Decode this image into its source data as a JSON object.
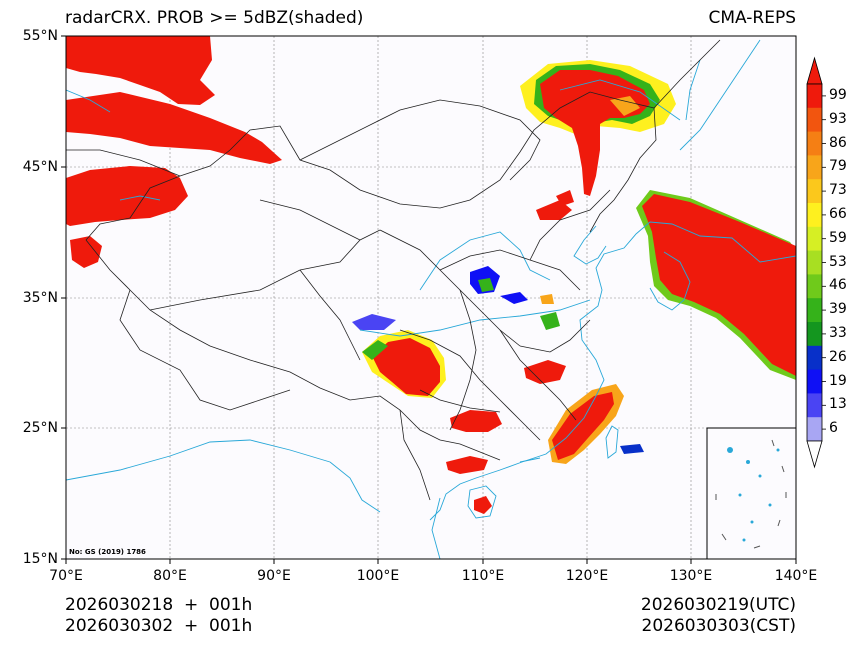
{
  "title_left": "radarCRX. PROB >= 5dBZ(shaded)",
  "title_right": "CMA-REPS",
  "lat_labels": [
    "55°N",
    "45°N",
    "35°N",
    "25°N",
    "15°N"
  ],
  "lon_labels": [
    "70°E",
    "80°E",
    "90°E",
    "100°E",
    "110°E",
    "120°E",
    "130°E",
    "140°E"
  ],
  "map_note": "No: GS (2019) 1786",
  "init_utc": "2026030218  +  001h",
  "init_cst": "2026030302  +  001h",
  "valid_utc": "2026030219(UTC)",
  "valid_cst": "2026030303(CST)",
  "colorbar": {
    "ticks": [
      "99",
      "93",
      "86",
      "79",
      "73",
      "66",
      "59",
      "53",
      "46",
      "39",
      "33",
      "26",
      "19",
      "13",
      "6"
    ],
    "colors": [
      "#ef1a0c",
      "#f2550f",
      "#f57f14",
      "#f8a51a",
      "#fbc81c",
      "#fef01f",
      "#d6ef24",
      "#a8df22",
      "#6fca1b",
      "#35b21a",
      "#14961f",
      "#0830c9",
      "#0f10f5",
      "#4a44f3",
      "#a8a6f3"
    ],
    "over_color": "#ef1a0c",
    "under_color": "#ffffff"
  }
}
